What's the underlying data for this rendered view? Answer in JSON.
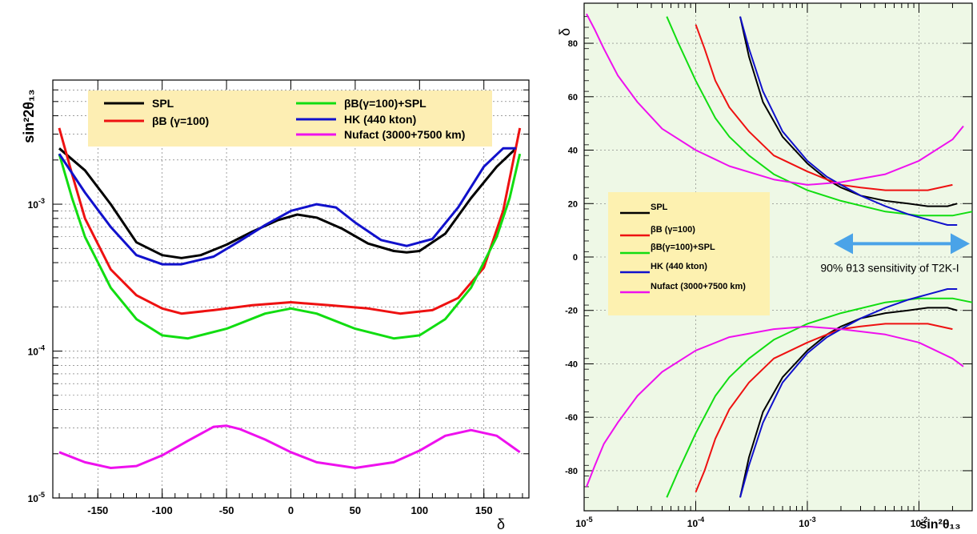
{
  "chart_data": [
    {
      "type": "line",
      "xlabel": "δ",
      "ylabel": "sin²2θ₁₃",
      "yscale": "log",
      "xlim": [
        -185,
        185
      ],
      "ylim": [
        1e-05,
        0.007
      ],
      "x_ticks": [
        "-150",
        "-100",
        "-50",
        "0",
        "50",
        "100",
        "150"
      ],
      "y_ticks": [
        {
          "base": "10",
          "exp": "-5",
          "value": 1e-05
        },
        {
          "base": "10",
          "exp": "-4",
          "value": 0.0001
        },
        {
          "base": "10",
          "exp": "-3",
          "value": 0.001
        }
      ],
      "grid": true,
      "legend": "top",
      "series": [
        {
          "name": "SPL",
          "color": "#000000",
          "x": [
            -180,
            -160,
            -140,
            -120,
            -100,
            -85,
            -70,
            -50,
            -30,
            -10,
            5,
            20,
            40,
            60,
            80,
            90,
            100,
            120,
            140,
            160,
            175
          ],
          "y": [
            0.0024,
            0.0017,
            0.001,
            0.00055,
            0.00045,
            0.00043,
            0.00045,
            0.00053,
            0.00065,
            0.00078,
            0.00085,
            0.00081,
            0.00068,
            0.00054,
            0.00048,
            0.00047,
            0.00048,
            0.00063,
            0.0011,
            0.0018,
            0.0024
          ]
        },
        {
          "name": "βB (γ=100)",
          "color": "#ee1111",
          "x": [
            -180,
            -170,
            -160,
            -140,
            -120,
            -100,
            -85,
            -60,
            -30,
            0,
            30,
            60,
            85,
            110,
            130,
            150,
            165,
            178
          ],
          "y": [
            0.0033,
            0.0016,
            0.0008,
            0.00036,
            0.00024,
            0.000195,
            0.00018,
            0.00019,
            0.000205,
            0.000215,
            0.000205,
            0.000195,
            0.00018,
            0.00019,
            0.00023,
            0.00037,
            0.0009,
            0.0033
          ]
        },
        {
          "name": "βB(γ=100)+SPL",
          "color": "#11dd11",
          "x": [
            -180,
            -170,
            -160,
            -140,
            -120,
            -100,
            -80,
            -50,
            -20,
            0,
            20,
            50,
            80,
            100,
            120,
            140,
            160,
            170,
            178
          ],
          "y": [
            0.0022,
            0.0011,
            0.0006,
            0.00027,
            0.000165,
            0.000128,
            0.000122,
            0.000142,
            0.00018,
            0.000195,
            0.00018,
            0.000142,
            0.000122,
            0.000128,
            0.000165,
            0.00027,
            0.0006,
            0.0011,
            0.0022
          ]
        },
        {
          "name": "HK (440 kton)",
          "color": "#1111cc",
          "x": [
            -180,
            -160,
            -140,
            -120,
            -100,
            -85,
            -60,
            -40,
            -20,
            0,
            20,
            35,
            50,
            70,
            90,
            110,
            130,
            150,
            165,
            175
          ],
          "y": [
            0.0022,
            0.0012,
            0.0007,
            0.00045,
            0.00039,
            0.00039,
            0.00044,
            0.00056,
            0.00072,
            0.0009,
            0.001,
            0.00095,
            0.00075,
            0.00057,
            0.00052,
            0.00058,
            0.00095,
            0.0018,
            0.0024,
            0.0024
          ]
        },
        {
          "name": "Nufact (3000+7500 km)",
          "color": "#ee11ee",
          "x": [
            -180,
            -160,
            -140,
            -120,
            -100,
            -80,
            -60,
            -50,
            -40,
            -20,
            0,
            20,
            50,
            80,
            100,
            120,
            140,
            160,
            178
          ],
          "y": [
            2.05e-05,
            1.75e-05,
            1.6e-05,
            1.65e-05,
            1.95e-05,
            2.45e-05,
            3.05e-05,
            3.1e-05,
            2.95e-05,
            2.5e-05,
            2.05e-05,
            1.75e-05,
            1.6e-05,
            1.75e-05,
            2.1e-05,
            2.65e-05,
            2.9e-05,
            2.65e-05,
            2.05e-05
          ]
        }
      ]
    },
    {
      "type": "line",
      "xlabel": "sin²θ₁₃",
      "ylabel": "δ",
      "xscale": "log",
      "xlim": [
        1e-05,
        0.03
      ],
      "ylim": [
        -95,
        95
      ],
      "y_ticks": [
        "80",
        "60",
        "40",
        "20",
        "0",
        "-20",
        "-40",
        "-60",
        "-80"
      ],
      "x_ticks": [
        {
          "base": "10",
          "exp": "-5",
          "value": 1e-05
        },
        {
          "base": "10",
          "exp": "-4",
          "value": 0.0001
        },
        {
          "base": "10",
          "exp": "-3",
          "value": 0.001
        },
        {
          "base": "10",
          "exp": "-2",
          "value": 0.01
        }
      ],
      "grid": true,
      "legend": "left-middle",
      "annotation": "90% θ13 sensitivity of T2K-I",
      "series": [
        {
          "name": "SPL",
          "color": "#000000",
          "x": [
            0.00025,
            0.0003,
            0.0004,
            0.0006,
            0.001,
            0.0015,
            0.002,
            0.003,
            0.005,
            0.008,
            0.012,
            0.018,
            0.022
          ],
          "y_upper": [
            90,
            75,
            58,
            45,
            35,
            29,
            26,
            23,
            21,
            20,
            19,
            19,
            20
          ],
          "y_lower": [
            -90,
            -75,
            -58,
            -45,
            -35,
            -29,
            -26,
            -23,
            -21,
            -20,
            -19,
            -19,
            -20
          ]
        },
        {
          "name": "βB (γ=100)",
          "color": "#ee1111",
          "x": [
            0.0001,
            0.00012,
            0.00015,
            0.0002,
            0.0003,
            0.0005,
            0.001,
            0.0015,
            0.002,
            0.003,
            0.005,
            0.008,
            0.012,
            0.02
          ],
          "y_upper": [
            87,
            78,
            66,
            56,
            47,
            38,
            32,
            29,
            27,
            26,
            25,
            25,
            25,
            27
          ],
          "y_lower": [
            -88,
            -80,
            -68,
            -57,
            -47,
            -38,
            -32,
            -29,
            -27,
            -26,
            -25,
            -25,
            -25,
            -27
          ]
        },
        {
          "name": "βB(γ=100)+SPL",
          "color": "#11dd11",
          "x": [
            5.5e-05,
            7e-05,
            0.0001,
            0.00015,
            0.0002,
            0.0003,
            0.0005,
            0.001,
            0.002,
            0.005,
            0.01,
            0.02,
            0.03
          ],
          "y_upper": [
            90,
            80,
            66,
            52,
            45,
            38,
            31,
            25,
            21,
            17,
            15.5,
            15.5,
            17
          ],
          "y_lower": [
            -90,
            -80,
            -66,
            -52,
            -45,
            -38,
            -31,
            -25,
            -21,
            -17,
            -15.5,
            -15.5,
            -17
          ]
        },
        {
          "name": "HK (440 kton)",
          "color": "#1111cc",
          "x": [
            0.00025,
            0.0003,
            0.0004,
            0.0006,
            0.001,
            0.0015,
            0.002,
            0.003,
            0.005,
            0.008,
            0.012,
            0.018,
            0.022
          ],
          "y_upper": [
            90,
            78,
            62,
            47,
            36,
            30,
            27,
            23,
            19,
            16,
            14,
            12,
            12
          ],
          "y_lower": [
            -90,
            -78,
            -62,
            -47,
            -36,
            -30,
            -27,
            -23,
            -19,
            -16,
            -14,
            -12,
            -12
          ]
        },
        {
          "name": "Nufact (3000+7500 km)",
          "color": "#ee11ee",
          "x": [
            1.05e-05,
            1.25e-05,
            1.5e-05,
            2e-05,
            3e-05,
            5e-05,
            0.0001,
            0.0002,
            0.0005,
            0.001,
            0.002,
            0.005,
            0.01,
            0.02,
            0.025
          ],
          "y_upper": [
            91,
            85,
            78,
            68,
            58,
            48,
            40,
            34,
            29,
            27,
            28,
            31,
            36,
            44,
            49
          ],
          "y_lower": [
            -86,
            -78,
            -70,
            -62,
            -52,
            -43,
            -35,
            -30,
            -27,
            -26,
            -27,
            -29,
            -32,
            -38,
            -41
          ]
        }
      ]
    }
  ]
}
